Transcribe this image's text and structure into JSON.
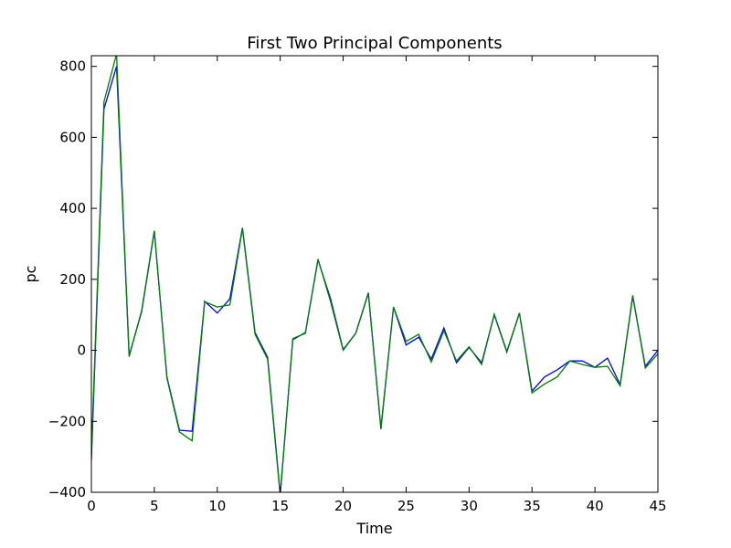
{
  "chart_data": {
    "type": "line",
    "title": "First Two Principal Components",
    "xlabel": "Time",
    "ylabel": "pc",
    "xlim": [
      0,
      45
    ],
    "ylim": [
      -400,
      830
    ],
    "xticks": [
      0,
      5,
      10,
      15,
      20,
      25,
      30,
      35,
      40,
      45
    ],
    "yticks": [
      -400,
      -200,
      0,
      200,
      400,
      600,
      800
    ],
    "grid": false,
    "x": [
      0,
      1,
      2,
      3,
      4,
      5,
      6,
      7,
      8,
      9,
      10,
      11,
      12,
      13,
      14,
      15,
      16,
      17,
      18,
      19,
      20,
      21,
      22,
      23,
      24,
      25,
      26,
      27,
      28,
      29,
      30,
      31,
      32,
      33,
      34,
      35,
      36,
      37,
      38,
      39,
      40,
      41,
      42,
      43,
      44,
      45
    ],
    "series": [
      {
        "color": "#0000ff",
        "values": [
          -310,
          680,
          800,
          -15,
          110,
          335,
          -75,
          -225,
          -228,
          138,
          105,
          145,
          345,
          50,
          -20,
          -405,
          30,
          50,
          255,
          145,
          2,
          48,
          162,
          -222,
          122,
          15,
          37,
          -25,
          63,
          -35,
          8,
          -35,
          100,
          -5,
          105,
          -115,
          -75,
          -55,
          -30,
          -30,
          -48,
          -22,
          -97,
          152,
          -45,
          0
        ]
      },
      {
        "color": "#008000",
        "values": [
          -290,
          700,
          835,
          -18,
          113,
          337,
          -78,
          -230,
          -255,
          137,
          122,
          128,
          343,
          45,
          -25,
          -410,
          33,
          48,
          257,
          137,
          0,
          48,
          160,
          -218,
          122,
          25,
          45,
          -33,
          55,
          -30,
          10,
          -40,
          102,
          -3,
          105,
          -120,
          -95,
          -75,
          -30,
          -40,
          -48,
          -45,
          -100,
          155,
          -50,
          -10
        ]
      }
    ]
  }
}
